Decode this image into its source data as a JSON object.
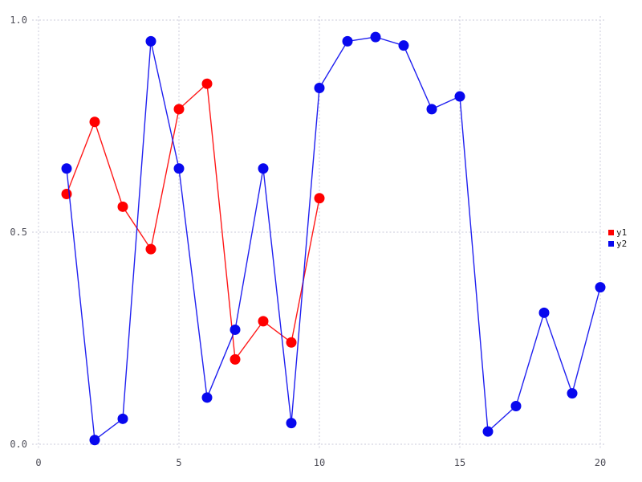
{
  "chart_data": {
    "type": "line",
    "title": "",
    "xlabel": "",
    "ylabel": "",
    "grid": true,
    "legend_position": "right",
    "xlim": [
      0,
      20
    ],
    "ylim": [
      0.0,
      1.0
    ],
    "x_ticks": [
      0,
      5,
      10,
      15,
      20
    ],
    "y_ticks": [
      {
        "label": "0.0",
        "value": 0.0
      },
      {
        "label": "0.5",
        "value": 0.5
      },
      {
        "label": "1.0",
        "value": 1.0
      }
    ],
    "series": [
      {
        "name": "y1",
        "color": "#ff0000",
        "x": [
          1,
          2,
          3,
          4,
          5,
          6,
          7,
          8,
          9,
          10
        ],
        "values": [
          0.59,
          0.76,
          0.56,
          0.46,
          0.79,
          0.85,
          0.2,
          0.29,
          0.24,
          0.58
        ]
      },
      {
        "name": "y2",
        "color": "#0808ee",
        "x": [
          1,
          2,
          3,
          4,
          5,
          6,
          7,
          8,
          9,
          10,
          11,
          12,
          13,
          14,
          15,
          16,
          17,
          18,
          19,
          20
        ],
        "values": [
          0.65,
          0.01,
          0.06,
          0.95,
          0.65,
          0.11,
          0.27,
          0.65,
          0.05,
          0.84,
          0.95,
          0.96,
          0.94,
          0.79,
          0.82,
          0.03,
          0.09,
          0.31,
          0.12,
          0.37
        ]
      }
    ]
  },
  "legend": {
    "items": [
      {
        "label": "y1",
        "color": "#ff0000"
      },
      {
        "label": "y2",
        "color": "#0808ee"
      }
    ]
  },
  "colors": {
    "background": "#ffffff",
    "gridline": "#c9c9da",
    "tick_label": "#50505a",
    "series_y1": "#ff0000",
    "series_y2": "#0808ee"
  }
}
